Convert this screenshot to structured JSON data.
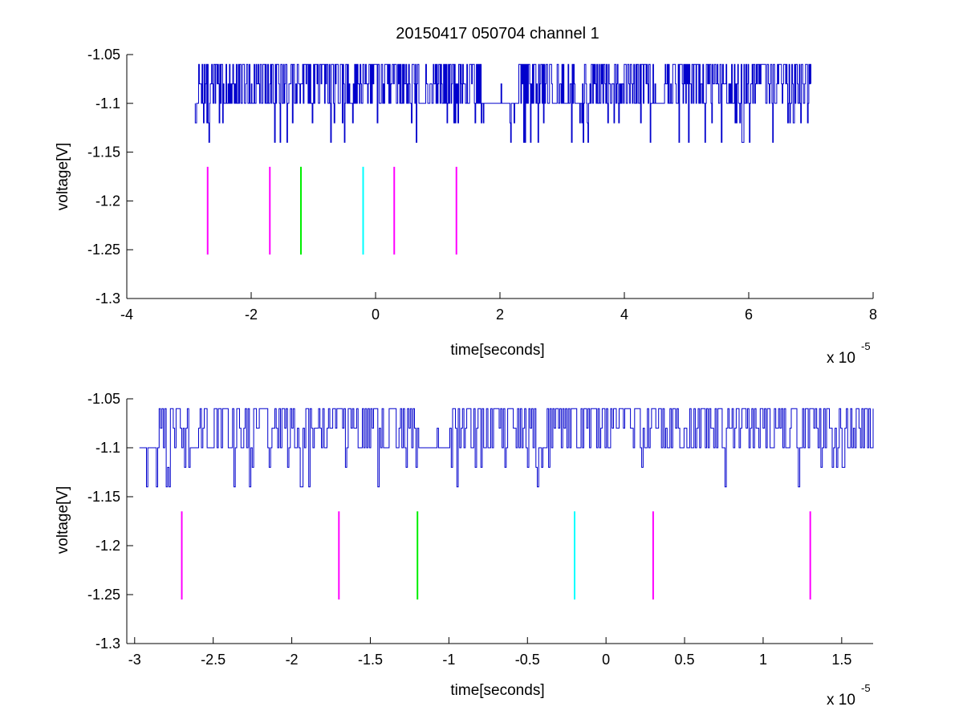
{
  "chart_data": [
    {
      "type": "line",
      "title": "20150417 050704 channel 1",
      "xlabel": "time[seconds]",
      "ylabel": "voltage[V]",
      "x_multiplier": "x 10",
      "x_multiplier_exponent": "-5",
      "xlim": [
        -4,
        8
      ],
      "ylim": [
        -1.3,
        -1.05
      ],
      "xticks": [
        -4,
        -2,
        0,
        2,
        4,
        6,
        8
      ],
      "xtick_labels": [
        "-4",
        "-2",
        "0",
        "2",
        "4",
        "6",
        "8"
      ],
      "yticks": [
        -1.05,
        -1.1,
        -1.15,
        -1.2,
        -1.25,
        -1.3
      ],
      "ytick_labels": [
        "-1.05",
        "-1.1",
        "-1.15",
        "-1.2",
        "-1.25",
        "-1.3"
      ],
      "grid": false,
      "signal": {
        "color": "#0000cc",
        "x_start": -2.9,
        "x_end": 7.0,
        "levels": [
          -1.06,
          -1.08,
          -1.1,
          -1.12,
          -1.14
        ],
        "baseline": -1.1,
        "dense_segments": [
          [
            -2.85,
            -1.05
          ],
          [
            -1.0,
            0.7
          ],
          [
            0.8,
            1.7
          ],
          [
            2.3,
            3.2
          ],
          [
            3.3,
            4.5
          ],
          [
            4.6,
            7.0
          ]
        ]
      },
      "markers": {
        "y_range": [
          -1.255,
          -1.165
        ],
        "lines": [
          {
            "x": -2.7,
            "color": "#ff00ff"
          },
          {
            "x": -1.7,
            "color": "#ff00ff"
          },
          {
            "x": -1.2,
            "color": "#00ee00"
          },
          {
            "x": -0.2,
            "color": "#00ffff"
          },
          {
            "x": 0.3,
            "color": "#ff00ff"
          },
          {
            "x": 1.3,
            "color": "#ff00ff"
          }
        ]
      }
    },
    {
      "type": "line",
      "title": "",
      "xlabel": "time[seconds]",
      "ylabel": "voltage[V]",
      "x_multiplier": "x 10",
      "x_multiplier_exponent": "-5",
      "xlim": [
        -3.05,
        1.7
      ],
      "ylim": [
        -1.3,
        -1.05
      ],
      "xticks": [
        -3,
        -2.5,
        -2,
        -1.5,
        -1,
        -0.5,
        0,
        0.5,
        1,
        1.5
      ],
      "xtick_labels": [
        "-3",
        "-2.5",
        "-2",
        "-1.5",
        "-1",
        "-0.5",
        "0",
        "0.5",
        "1",
        "1.5"
      ],
      "yticks": [
        -1.05,
        -1.1,
        -1.15,
        -1.2,
        -1.25,
        -1.3
      ],
      "ytick_labels": [
        "-1.05",
        "-1.1",
        "-1.15",
        "-1.2",
        "-1.25",
        "-1.3"
      ],
      "grid": false,
      "signal": {
        "color": "#0000cc",
        "x_start": -2.97,
        "x_end": 1.7,
        "levels": [
          -1.06,
          -1.08,
          -1.1,
          -1.12,
          -1.14
        ],
        "baseline": -1.1,
        "dense_segments": [
          [
            -2.88,
            -2.65
          ],
          [
            -2.6,
            -2.05
          ],
          [
            -2.05,
            -1.47
          ],
          [
            -1.47,
            -1.2
          ],
          [
            -1.0,
            -0.15
          ],
          [
            -0.15,
            0.65
          ],
          [
            0.65,
            1.0
          ],
          [
            1.0,
            1.7
          ]
        ]
      },
      "markers": {
        "y_range": [
          -1.255,
          -1.165
        ],
        "lines": [
          {
            "x": -2.7,
            "color": "#ff00ff"
          },
          {
            "x": -1.7,
            "color": "#ff00ff"
          },
          {
            "x": -1.2,
            "color": "#00ee00"
          },
          {
            "x": -0.2,
            "color": "#00ffff"
          },
          {
            "x": 0.3,
            "color": "#ff00ff"
          },
          {
            "x": 1.3,
            "color": "#ff00ff"
          }
        ]
      }
    }
  ]
}
